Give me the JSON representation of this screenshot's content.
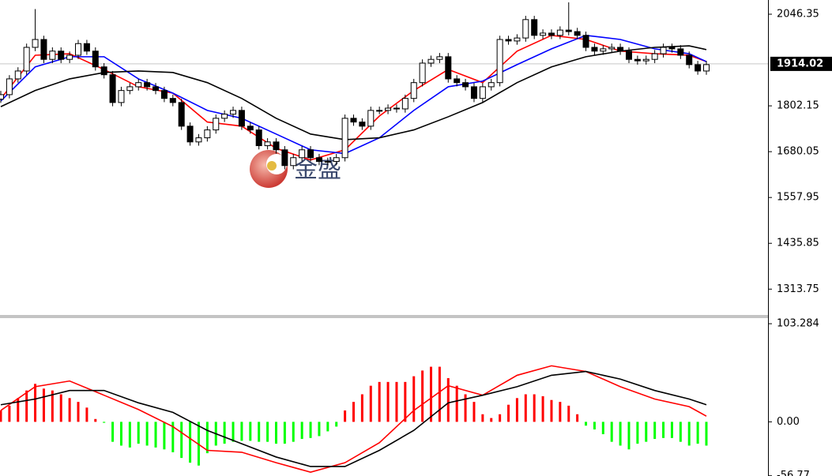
{
  "chart_data": [
    {
      "type": "candlestick",
      "watermark": "金盛",
      "xlim": [
        0,
        82
      ],
      "ylim": [
        1242.8,
        2084.2
      ],
      "yticks": [
        1313.75,
        1435.85,
        1557.95,
        1680.05,
        1802.15,
        2046.35
      ],
      "last_price": 1914.02,
      "up_color": "#ffffff",
      "down_color": "#000000",
      "open": [
        1820,
        1832,
        1874,
        1895,
        1958,
        1979,
        1926,
        1948,
        1926,
        1937,
        1968,
        1948,
        1906,
        1885,
        1811,
        1843,
        1853,
        1864,
        1853,
        1843,
        1822,
        1811,
        1748,
        1706,
        1717,
        1738,
        1769,
        1780,
        1790,
        1748,
        1738,
        1696,
        1706,
        1685,
        1643,
        1664,
        1685,
        1664,
        1654,
        1654,
        1664,
        1769,
        1759,
        1748,
        1790,
        1790,
        1796,
        1794,
        1822,
        1864,
        1916,
        1926,
        1933,
        1874,
        1864,
        1853,
        1822,
        1853,
        1864,
        1979,
        1975,
        1983,
        2032,
        1990,
        1996,
        1990,
        2004,
        2000,
        1990,
        1958,
        1948,
        1954,
        1958,
        1948,
        1926,
        1922,
        1926,
        1941,
        1958,
        1954,
        1937,
        1912,
        1895
      ],
      "high": [
        1842,
        1884,
        1905,
        1968,
        2060,
        1989,
        1958,
        1958,
        1947,
        1978,
        1978,
        1958,
        1916,
        1895,
        1853,
        1863,
        1874,
        1874,
        1863,
        1853,
        1832,
        1821,
        1758,
        1727,
        1748,
        1779,
        1790,
        1800,
        1800,
        1758,
        1748,
        1716,
        1716,
        1695,
        1674,
        1695,
        1695,
        1674,
        1664,
        1674,
        1779,
        1779,
        1769,
        1800,
        1800,
        1806,
        1806,
        1832,
        1874,
        1926,
        1936,
        1943,
        1943,
        1884,
        1874,
        1863,
        1863,
        1874,
        1989,
        1989,
        1993,
        2042,
        2042,
        2006,
        2006,
        2014,
        2078,
        2010,
        2000,
        1968,
        1964,
        1968,
        1968,
        1958,
        1936,
        1936,
        1951,
        1968,
        1968,
        1964,
        1947,
        1922,
        1922
      ],
      "low": [
        1810,
        1822,
        1864,
        1885,
        1948,
        1916,
        1916,
        1916,
        1916,
        1927,
        1938,
        1896,
        1875,
        1801,
        1801,
        1833,
        1843,
        1843,
        1833,
        1812,
        1801,
        1738,
        1696,
        1696,
        1707,
        1728,
        1759,
        1770,
        1738,
        1728,
        1686,
        1686,
        1675,
        1633,
        1633,
        1654,
        1654,
        1644,
        1644,
        1644,
        1654,
        1749,
        1738,
        1738,
        1780,
        1780,
        1784,
        1784,
        1812,
        1854,
        1906,
        1916,
        1864,
        1854,
        1843,
        1812,
        1812,
        1843,
        1854,
        1965,
        1965,
        1973,
        1980,
        1980,
        1980,
        1980,
        1990,
        1980,
        1948,
        1938,
        1938,
        1944,
        1938,
        1916,
        1912,
        1912,
        1916,
        1931,
        1944,
        1927,
        1902,
        1885,
        1885
      ],
      "close": [
        1832,
        1874,
        1895,
        1958,
        1979,
        1926,
        1948,
        1926,
        1937,
        1968,
        1948,
        1906,
        1885,
        1811,
        1843,
        1853,
        1864,
        1853,
        1843,
        1822,
        1811,
        1748,
        1706,
        1717,
        1738,
        1769,
        1780,
        1790,
        1748,
        1738,
        1696,
        1706,
        1685,
        1643,
        1664,
        1685,
        1664,
        1654,
        1654,
        1664,
        1769,
        1759,
        1748,
        1790,
        1790,
        1796,
        1794,
        1822,
        1864,
        1916,
        1926,
        1933,
        1874,
        1864,
        1853,
        1822,
        1853,
        1864,
        1979,
        1975,
        1983,
        2032,
        1990,
        1996,
        1990,
        2004,
        2000,
        1990,
        1958,
        1948,
        1954,
        1958,
        1948,
        1926,
        1922,
        1926,
        1941,
        1958,
        1954,
        1937,
        1912,
        1895,
        1912
      ],
      "series": [
        {
          "color": "#ff0000",
          "x": [
            0,
            4,
            8,
            12,
            16,
            20,
            24,
            28,
            32,
            36,
            40,
            44,
            48,
            52,
            56,
            60,
            64,
            68,
            72,
            76,
            80,
            82
          ],
          "values": [
            1821,
            1937,
            1941,
            1899,
            1853,
            1836,
            1759,
            1748,
            1689,
            1658,
            1685,
            1775,
            1843,
            1899,
            1864,
            1948,
            1990,
            1979,
            1948,
            1941,
            1937,
            1920
          ]
        },
        {
          "color": "#0000ff",
          "x": [
            0,
            4,
            8,
            12,
            16,
            20,
            24,
            28,
            32,
            36,
            40,
            44,
            48,
            52,
            56,
            60,
            64,
            68,
            72,
            76,
            80,
            82
          ],
          "values": [
            1815,
            1906,
            1933,
            1933,
            1874,
            1836,
            1790,
            1769,
            1727,
            1685,
            1675,
            1717,
            1790,
            1853,
            1868,
            1912,
            1954,
            1990,
            1979,
            1954,
            1941,
            1920
          ]
        },
        {
          "color": "#000000",
          "x": [
            0,
            4,
            8,
            12,
            16,
            20,
            24,
            28,
            32,
            36,
            40,
            44,
            48,
            52,
            56,
            60,
            64,
            68,
            72,
            76,
            80,
            82
          ],
          "values": [
            1800,
            1843,
            1874,
            1891,
            1895,
            1891,
            1864,
            1822,
            1769,
            1727,
            1712,
            1717,
            1738,
            1773,
            1811,
            1864,
            1906,
            1933,
            1948,
            1958,
            1962,
            1952
          ]
        }
      ]
    },
    {
      "type": "macd",
      "xlim": [
        0,
        82
      ],
      "ylim": [
        -57,
        110
      ],
      "yticks": [
        103.284,
        {
          "value": 0,
          "label": "0.00"
        },
        -56.77
      ],
      "positive_color": "#ff0000",
      "negative_color": "#00ff00",
      "values": [
        12,
        17,
        25,
        33,
        40,
        35,
        33,
        29,
        25,
        21,
        15,
        3,
        -1,
        -21,
        -25,
        -27,
        -23,
        -25,
        -27,
        -29,
        -32,
        -38,
        -43,
        -46,
        -33,
        -25,
        -23,
        -21,
        -20,
        -20,
        -21,
        -21,
        -23,
        -23,
        -21,
        -18,
        -17,
        -15,
        -10,
        -5,
        12,
        21,
        29,
        38,
        42,
        42,
        42,
        42,
        48,
        54,
        58,
        58,
        46,
        38,
        29,
        21,
        8,
        4,
        8,
        18,
        25,
        29,
        29,
        27,
        23,
        21,
        17,
        8,
        -4,
        -8,
        -13,
        -21,
        -25,
        -29,
        -23,
        -21,
        -18,
        -17,
        -17,
        -21,
        -25,
        -23,
        -25
      ],
      "series": [
        {
          "color": "#ff0000",
          "x": [
            0,
            4,
            8,
            12,
            16,
            20,
            24,
            28,
            32,
            36,
            40,
            44,
            48,
            52,
            56,
            60,
            64,
            68,
            72,
            76,
            80,
            82
          ],
          "values": [
            12,
            37,
            43,
            28,
            13,
            -5,
            -30,
            -32,
            -43,
            -53,
            -43,
            -22,
            12,
            38,
            28,
            49,
            59,
            53,
            37,
            24,
            16,
            6
          ]
        },
        {
          "color": "#000000",
          "x": [
            0,
            4,
            8,
            12,
            16,
            20,
            24,
            28,
            32,
            36,
            40,
            44,
            48,
            52,
            56,
            60,
            64,
            68,
            72,
            76,
            80,
            82
          ],
          "values": [
            18,
            24,
            33,
            33,
            20,
            10,
            -9,
            -23,
            -37,
            -47,
            -47,
            -30,
            -9,
            20,
            28,
            37,
            49,
            53,
            45,
            33,
            24,
            18
          ]
        }
      ]
    }
  ]
}
